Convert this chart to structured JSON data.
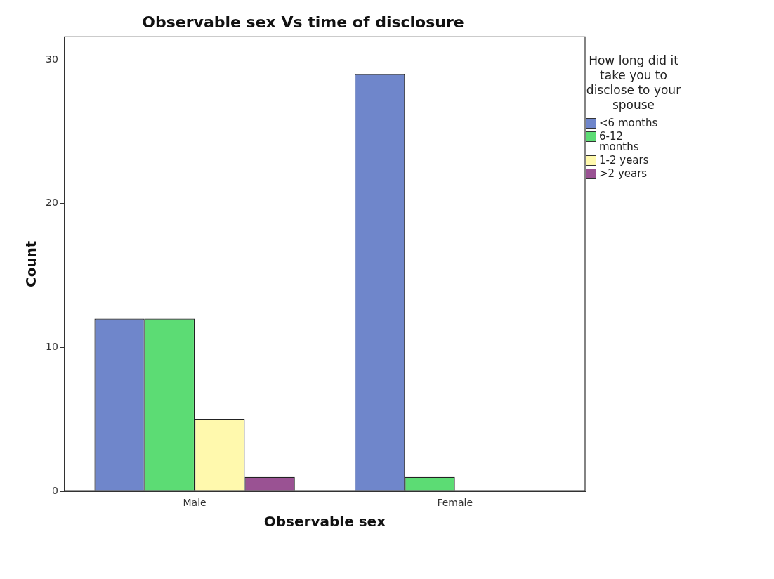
{
  "chart_data": {
    "type": "bar",
    "title": "Observable sex Vs time of disclosure",
    "xlabel": "Observable sex",
    "ylabel": "Count",
    "legend_title": "How long did it take you to disclose to your spouse",
    "categories": [
      "Male",
      "Female"
    ],
    "series": [
      {
        "name": "<6 months",
        "color": "#6f86cb",
        "values": [
          12,
          29
        ]
      },
      {
        "name": "6-12 months",
        "color": "#5cdc74",
        "values": [
          12,
          1
        ]
      },
      {
        "name": "1-2 years",
        "color": "#fff9ad",
        "values": [
          5,
          0
        ]
      },
      {
        "name": ">2 years",
        "color": "#9a5293",
        "values": [
          1,
          0
        ]
      }
    ],
    "ylim": [
      0,
      31.6
    ],
    "yticks": [
      0,
      10,
      20,
      30
    ],
    "grid": false,
    "legend": "right"
  }
}
